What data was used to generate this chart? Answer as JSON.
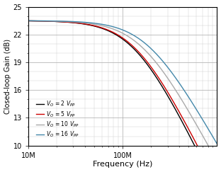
{
  "xlabel": "Frequency (Hz)",
  "ylabel": "Closed-loop Gain (dB)",
  "xlim": [
    10000000.0,
    1000000000.0
  ],
  "ylim": [
    10,
    25
  ],
  "yticks": [
    10,
    13,
    16,
    19,
    22,
    25
  ],
  "flat_gain": 23.5,
  "series": [
    {
      "label": "V_O = 2 V_PP",
      "color": "#000000",
      "lw": 1.0,
      "fc": 135000000.0,
      "n": 1.05
    },
    {
      "label": "V_O = 5 V_PP",
      "color": "#cc0000",
      "lw": 1.0,
      "fc": 138000000.0,
      "n": 1.02
    },
    {
      "label": "V_O = 10 V_PP",
      "color": "#aaaaaa",
      "lw": 1.0,
      "fc": 160000000.0,
      "n": 0.95
    },
    {
      "label": "V_O = 16 V_PP",
      "color": "#4488aa",
      "lw": 1.0,
      "fc": 185000000.0,
      "n": 0.9
    }
  ],
  "legend_items": [
    {
      "label": "V_O = 2 V_PP",
      "color": "#000000"
    },
    {
      "label": "V_O = 5 V_PP",
      "color": "#cc0000"
    },
    {
      "label": "V_O = 10 V_PP",
      "color": "#aaaaaa"
    },
    {
      "label": "V_O = 16 V_PP",
      "color": "#4488aa"
    }
  ]
}
